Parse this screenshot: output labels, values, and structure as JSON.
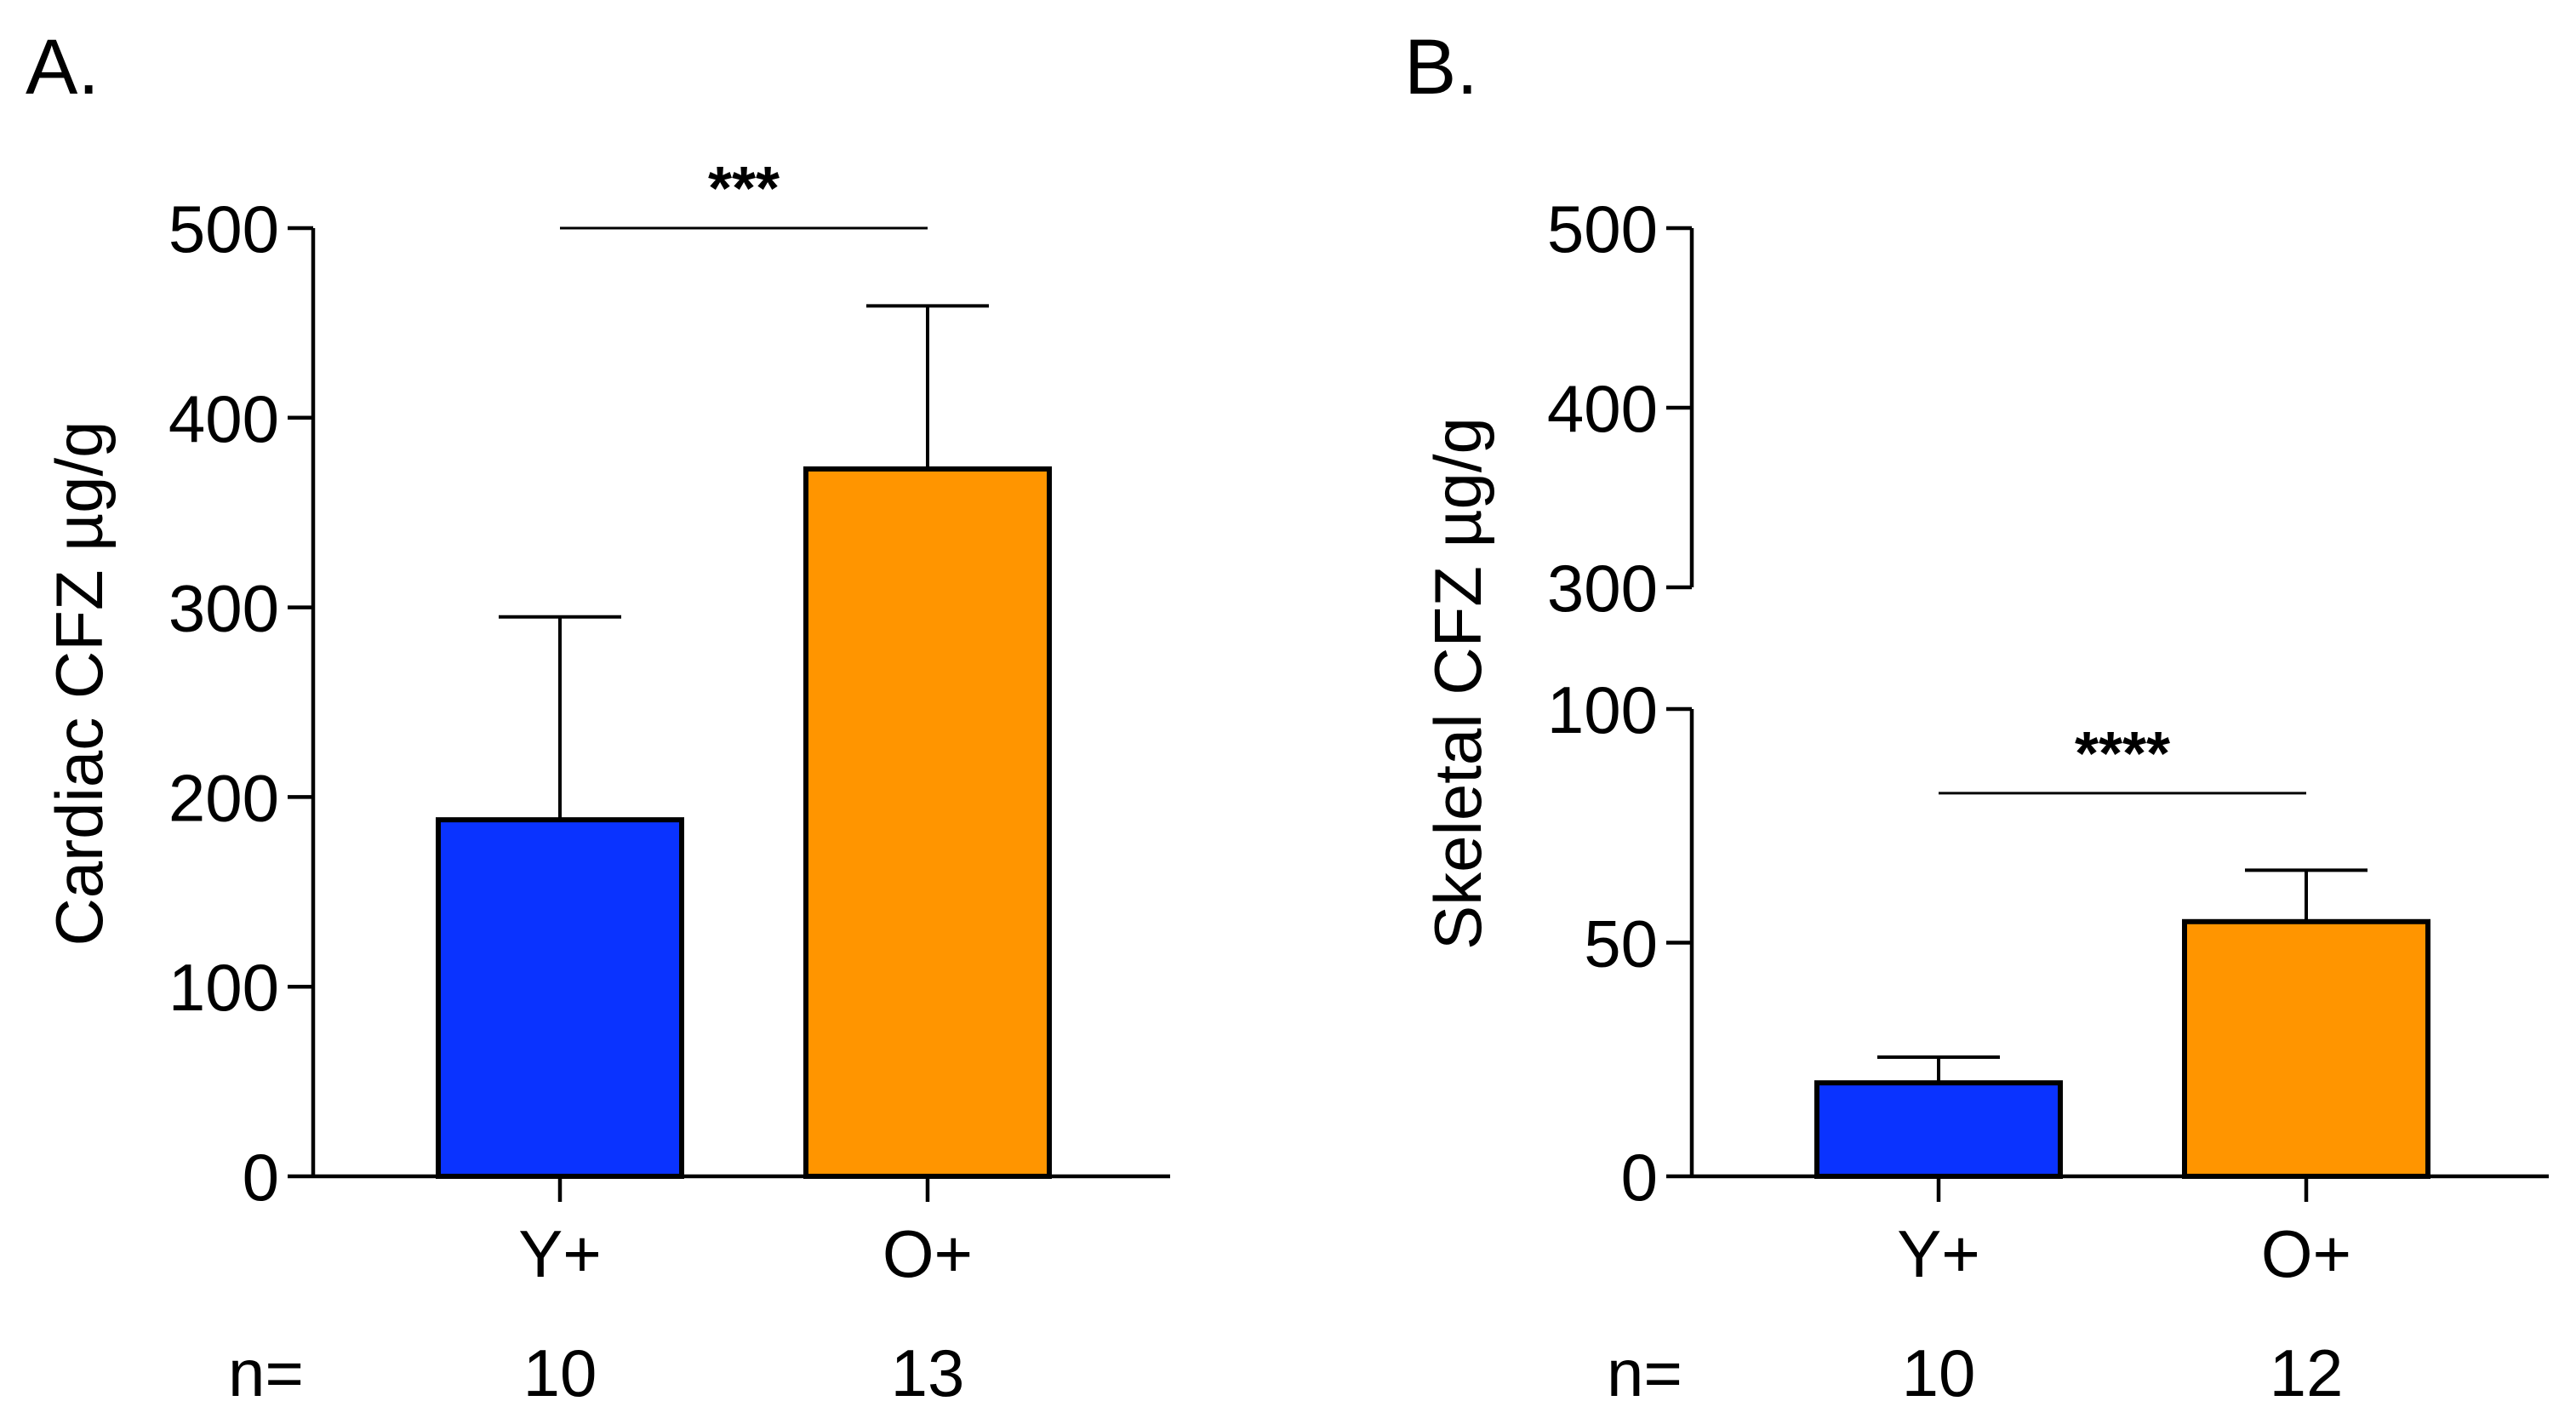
{
  "chart_data": [
    {
      "type": "bar",
      "panel_label": "A.",
      "ylabel": "Cardiac CFZ µg/g",
      "ylim": [
        0,
        500
      ],
      "yticks": [
        0,
        100,
        200,
        300,
        400,
        500
      ],
      "categories": [
        "Y+",
        "O+"
      ],
      "values": [
        188,
        373
      ],
      "error_upper": [
        295,
        459
      ],
      "colors": [
        "#0a33ff",
        "#ff9500"
      ],
      "n_prefix": "n=",
      "n_values": [
        "10",
        "13"
      ],
      "significance": {
        "from": 0,
        "to": 1,
        "label": "***",
        "y": 500
      },
      "axis_break": null
    },
    {
      "type": "bar",
      "panel_label": "B.",
      "ylabel": "Skeletal CFZ µg/g",
      "ylim": [
        0,
        500
      ],
      "yticks": [
        0,
        50,
        100,
        300,
        400,
        500
      ],
      "categories": [
        "Y+",
        "O+"
      ],
      "values": [
        20,
        54.5
      ],
      "error_upper": [
        25.5,
        65.5
      ],
      "colors": [
        "#0a33ff",
        "#ff9500"
      ],
      "n_prefix": "n=",
      "n_values": [
        "10",
        "12"
      ],
      "significance": {
        "from": 0,
        "to": 1,
        "label": "****",
        "y": 82
      },
      "axis_break": {
        "lower_max": 100,
        "upper_min": 300
      }
    }
  ]
}
